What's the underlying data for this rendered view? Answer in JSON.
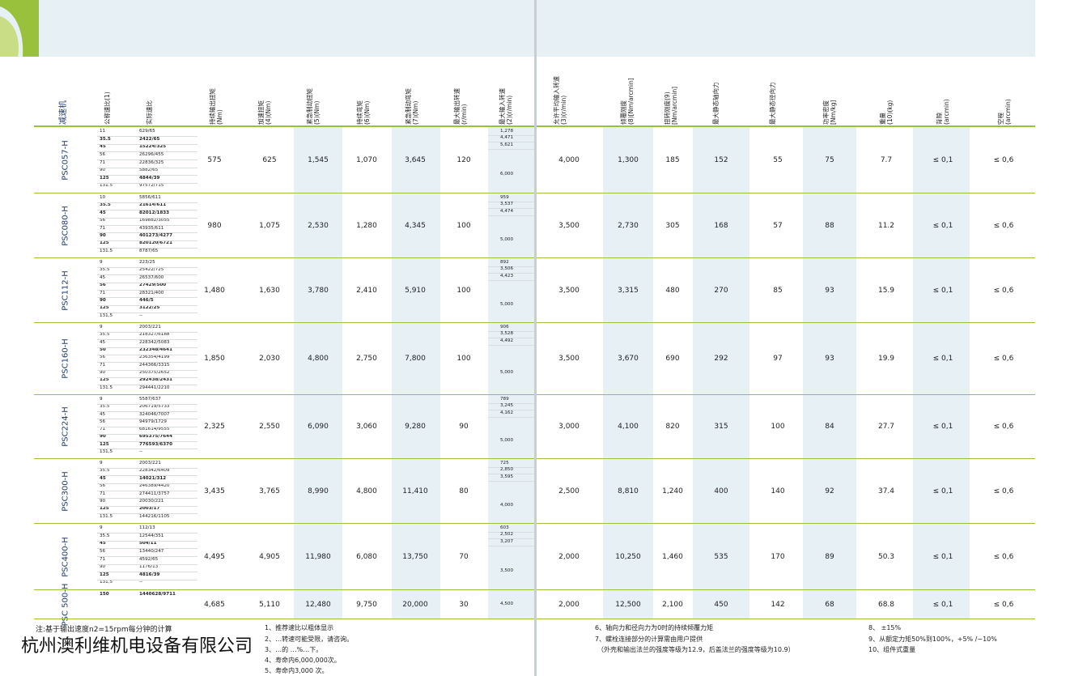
{
  "headers_left": [
    "减速机",
    "公称速比(1)",
    "实际速比",
    "持续输出扭矩\n(Nm)",
    "加速扭矩\n(4)(Nm)",
    "紧急制动扭矩\n(5)(Nm)",
    "持续弯矩\n(6)(Nm)",
    "紧急制动弯矩\n(7)(Nm)",
    "最大输出转速\n(r/min)",
    "最大输入转速\n(2)(r/min)"
  ],
  "headers_right": [
    "允许平均输入转速\n(3)(r/min)",
    "倾覆刚度\n(8)[Nm/arcmin]",
    "扭转刚度(9)\n[Nm/arcmin]",
    "最大静态轴向力",
    "最大静态径向力",
    "功率密度\n[Nm/kg]",
    "重量\n(10)(kg)",
    "背隙\n(arcmin)",
    "空程\n(arcmin)"
  ],
  "rows": [
    {
      "model": "PSC057-H",
      "ratios": [
        [
          "11",
          "629/65"
        ],
        [
          "35.5",
          "2422/65"
        ],
        [
          "45",
          "15224/325"
        ],
        [
          "56",
          "26296/455"
        ],
        [
          "71",
          "22836/325"
        ],
        [
          "90",
          "5882/65"
        ],
        [
          "125",
          "4844/39"
        ],
        [
          "131.5",
          "97572/715"
        ]
      ],
      "bold": [
        1,
        2,
        6
      ],
      "input": [
        "1,278",
        "4,471",
        "5,621",
        "6,000"
      ],
      "vals": [
        "575",
        "625",
        "1,545",
        "1,070",
        "3,645",
        "120"
      ],
      "rvals": [
        "4,000",
        "1,300",
        "185",
        "152",
        "55",
        "75",
        "7.7",
        "≤ 0,1",
        "≤ 0,6"
      ]
    },
    {
      "model": "PSC080-H",
      "ratios": [
        [
          "10",
          "5856/611"
        ],
        [
          "35.5",
          "21614/611"
        ],
        [
          "45",
          "82012/1833"
        ],
        [
          "56",
          "169882/3055"
        ],
        [
          "71",
          "43935/611"
        ],
        [
          "90",
          "401273/4277"
        ],
        [
          "125",
          "820120/6721"
        ],
        [
          "131.5",
          "8787/65"
        ]
      ],
      "bold": [
        1,
        2,
        5,
        6
      ],
      "input": [
        "959",
        "3,537",
        "4,474",
        "5,000"
      ],
      "vals": [
        "980",
        "1,075",
        "2,530",
        "1,280",
        "4,345",
        "100"
      ],
      "rvals": [
        "3,500",
        "2,730",
        "305",
        "168",
        "57",
        "88",
        "11.2",
        "≤ 0,1",
        "≤ 0,6"
      ]
    },
    {
      "model": "PSC112-H",
      "ratios": [
        [
          "9",
          "223/25"
        ],
        [
          "35.5",
          "25422/725"
        ],
        [
          "45",
          "26537/600"
        ],
        [
          "56",
          "27429/500"
        ],
        [
          "71",
          "28321/400"
        ],
        [
          "90",
          "446/5"
        ],
        [
          "125",
          "3122/25"
        ],
        [
          "131,5",
          "--"
        ]
      ],
      "bold": [
        3,
        5,
        6
      ],
      "input": [
        "892",
        "3,506",
        "4,423",
        "5,000"
      ],
      "vals": [
        "1,480",
        "1,630",
        "3,780",
        "2,410",
        "5,910",
        "100"
      ],
      "rvals": [
        "3,500",
        "3,315",
        "480",
        "270",
        "85",
        "93",
        "15.9",
        "≤ 0,1",
        "≤ 0,6"
      ]
    },
    {
      "model": "PSC160-H",
      "ratios": [
        [
          "9",
          "2003/221"
        ],
        [
          "35.5",
          "218327/6188"
        ],
        [
          "45",
          "228342/5083"
        ],
        [
          "50",
          "232348/4641"
        ],
        [
          "56",
          "236354/4199"
        ],
        [
          "71",
          "244366/3315"
        ],
        [
          "90",
          "250375/2652"
        ],
        [
          "125",
          "292438/2431"
        ],
        [
          "131.5",
          "294441/2210"
        ]
      ],
      "bold": [
        3,
        7
      ],
      "input": [
        "906",
        "3,528",
        "4,492",
        "5,000"
      ],
      "vals": [
        "1,850",
        "2,030",
        "4,800",
        "2,750",
        "7,800",
        "100"
      ],
      "rvals": [
        "3,500",
        "3,670",
        "690",
        "292",
        "97",
        "93",
        "19.9",
        "≤ 0,1",
        "≤ 0,6"
      ]
    },
    {
      "model": "PSC224-H",
      "ratios": [
        [
          "9",
          "5587/637"
        ],
        [
          "35.5",
          "206719/5733"
        ],
        [
          "45",
          "324046/7007"
        ],
        [
          "56",
          "94979/1729"
        ],
        [
          "71",
          "681614/9555"
        ],
        [
          "90",
          "695375/7644"
        ],
        [
          "125",
          "776593/6370"
        ],
        [
          "131,5",
          "--"
        ]
      ],
      "bold": [
        5,
        6
      ],
      "input": [
        "789",
        "3,245",
        "4,162",
        "5,000"
      ],
      "vals": [
        "2,325",
        "2,550",
        "6,090",
        "3,060",
        "9,280",
        "90"
      ],
      "rvals": [
        "3,000",
        "4,100",
        "820",
        "315",
        "100",
        "84",
        "27.7",
        "≤ 0,1",
        "≤ 0,6"
      ]
    },
    {
      "model": "PSC300-H",
      "ratios": [
        [
          "9",
          "2003/221"
        ],
        [
          "35.5",
          "228342/6409"
        ],
        [
          "45",
          "14021/312"
        ],
        [
          "56",
          "246389/4420"
        ],
        [
          "71",
          "274411/3757"
        ],
        [
          "90",
          "20030/221"
        ],
        [
          "125",
          "2003/17"
        ],
        [
          "131.5",
          "144216/1105"
        ]
      ],
      "bold": [
        2,
        6
      ],
      "input": [
        "725",
        "2,850",
        "3,595",
        "4,000"
      ],
      "vals": [
        "3,435",
        "3,765",
        "8,990",
        "4,800",
        "11,410",
        "80"
      ],
      "rvals": [
        "2,500",
        "8,810",
        "1,240",
        "400",
        "140",
        "92",
        "37.4",
        "≤ 0,1",
        "≤ 0,6"
      ]
    },
    {
      "model": "PSC400-H",
      "ratios": [
        [
          "9",
          "112/13"
        ],
        [
          "35.5",
          "12544/351"
        ],
        [
          "45",
          "504/11"
        ],
        [
          "56",
          "13440/247"
        ],
        [
          "71",
          "4592/65"
        ],
        [
          "90",
          "1176/13"
        ],
        [
          "125",
          "4816/39"
        ],
        [
          "131,5",
          "--"
        ]
      ],
      "bold": [
        2,
        6
      ],
      "input": [
        "603",
        "2,502",
        "3,207",
        "3,500"
      ],
      "vals": [
        "4,495",
        "4,905",
        "11,980",
        "6,080",
        "13,750",
        "70"
      ],
      "rvals": [
        "2,000",
        "10,250",
        "1,460",
        "535",
        "170",
        "89",
        "50.3",
        "≤ 0,1",
        "≤ 0,6"
      ]
    },
    {
      "model": "PSC 500-H",
      "ratios": [
        [
          "150",
          "1440628/9711"
        ]
      ],
      "bold": [
        0
      ],
      "input": [
        "4,500"
      ],
      "vals": [
        "4,685",
        "5,110",
        "12,480",
        "9,750",
        "20,000",
        "30"
      ],
      "rvals": [
        "2,000",
        "12,500",
        "2,100",
        "450",
        "142",
        "68",
        "68.8",
        "≤ 0,1",
        "≤ 0,6"
      ]
    }
  ],
  "notes": {
    "left_title": "注:基于输出速度n2=15rpm每分钟的计算",
    "left_items": [
      "1、推荐速比以粗体显示",
      "2、…转速可能受限，请咨询。",
      "3、…的 …%…下。",
      "4、寿命内6,000,000次。",
      "5、寿命内3,000 次。"
    ],
    "mid_items": [
      "6、轴向力和径向力为0时的持续倾覆力矩",
      "7、螺栓连接部分的计算需由用户提供",
      "（外壳和输出法兰的强度等级为12.9，后盖法兰的强度等级为10.9）"
    ],
    "right_items": [
      "8、 ±15%",
      "9、从额定力矩50%到100%，+5% /−10%",
      "10、组件式重量"
    ],
    "company": "杭州澳利维机电设备有限公司"
  }
}
